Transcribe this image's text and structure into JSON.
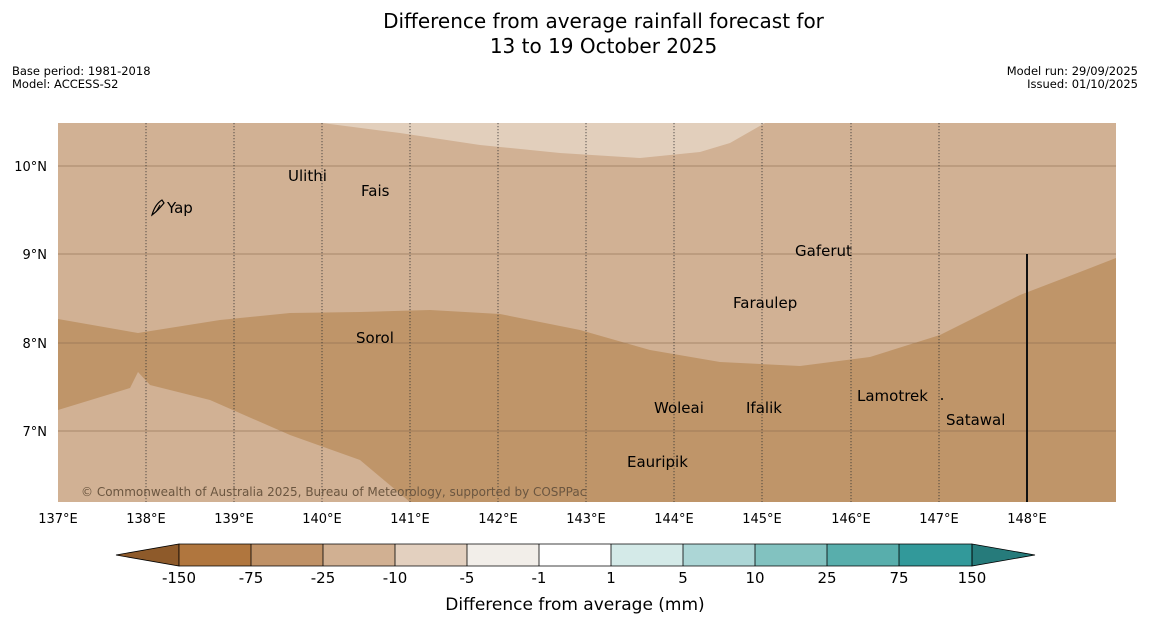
{
  "title": {
    "line1": "Difference from average rainfall forecast for",
    "line2": "13 to 19 October 2025"
  },
  "meta": {
    "base_period": "Base period: 1981-2018",
    "model": "Model: ACCESS-S2",
    "model_run": "Model run: 29/09/2025",
    "issued": "Issued: 01/10/2025"
  },
  "map": {
    "lat_labels": [
      "10°N",
      "9°N",
      "8°N",
      "7°N"
    ],
    "lon_labels": [
      "137°E",
      "138°E",
      "139°E",
      "140°E",
      "141°E",
      "142°E",
      "143°E",
      "144°E",
      "145°E",
      "146°E",
      "147°E",
      "148°E"
    ],
    "places": [
      "Yap",
      "Ulithi",
      "Fais",
      "Gaferut",
      "Faraulep",
      "Sorol",
      "Lamotrek",
      "Woleai",
      "Ifalik",
      "Satawal",
      "Eauripik"
    ],
    "copyright": "© Commonwealth of Australia 2025, Bureau of Meteorology, supported by COSPPac",
    "region_colors": {
      "light": "#e2cfbc",
      "mid": "#d1b194",
      "dark": "#bf9569"
    }
  },
  "colorbar": {
    "title": "Difference from average (mm)",
    "tick_labels": [
      "-150",
      "-75",
      "-25",
      "-10",
      "-5",
      "-1",
      "1",
      "5",
      "10",
      "25",
      "75",
      "150"
    ],
    "colors": [
      "#8e5a2a",
      "#b0763e",
      "#bf9166",
      "#d1b092",
      "#e3d0bf",
      "#f2eee9",
      "#ffffff",
      "#d4eae8",
      "#acd6d6",
      "#82c2c0",
      "#58aeac",
      "#32999a",
      "#267b7b"
    ]
  }
}
